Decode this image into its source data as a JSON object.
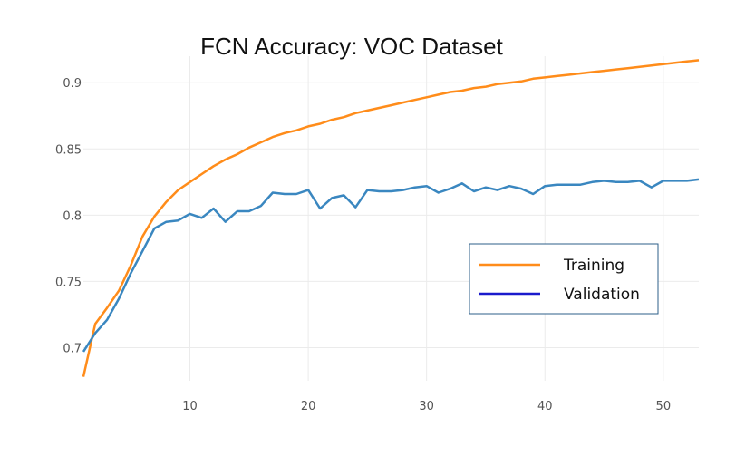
{
  "chart_data": {
    "type": "line",
    "title": "FCN Accuracy: VOC Dataset",
    "xlabel": "",
    "ylabel": "",
    "xlim": [
      1,
      53
    ],
    "ylim": [
      0.675,
      0.92
    ],
    "grid": true,
    "legend_position": "right",
    "x_ticks": [
      10,
      20,
      30,
      40,
      50
    ],
    "y_ticks": [
      0.7,
      0.75,
      0.8,
      0.85,
      0.9
    ],
    "x_tick_labels": [
      "10",
      "20",
      "30",
      "40",
      "50"
    ],
    "y_tick_labels": [
      "0.7",
      "0.75",
      "0.8",
      "0.85",
      "0.9"
    ],
    "series": [
      {
        "name": "Training",
        "color": "#ff8c1a",
        "legend_color": "#ff8c1a",
        "x": [
          1,
          2,
          3,
          4,
          5,
          6,
          7,
          8,
          9,
          10,
          11,
          12,
          13,
          14,
          15,
          16,
          17,
          18,
          19,
          20,
          21,
          22,
          23,
          24,
          25,
          26,
          27,
          28,
          29,
          30,
          31,
          32,
          33,
          34,
          35,
          36,
          37,
          38,
          39,
          40,
          41,
          42,
          43,
          44,
          45,
          46,
          47,
          48,
          49,
          50,
          51,
          52,
          53
        ],
        "y": [
          0.678,
          0.718,
          0.73,
          0.743,
          0.762,
          0.784,
          0.799,
          0.81,
          0.819,
          0.825,
          0.831,
          0.837,
          0.842,
          0.846,
          0.851,
          0.855,
          0.859,
          0.862,
          0.864,
          0.867,
          0.869,
          0.872,
          0.874,
          0.877,
          0.879,
          0.881,
          0.883,
          0.885,
          0.887,
          0.889,
          0.891,
          0.893,
          0.894,
          0.896,
          0.897,
          0.899,
          0.9,
          0.901,
          0.903,
          0.904,
          0.905,
          0.906,
          0.907,
          0.908,
          0.909,
          0.91,
          0.911,
          0.912,
          0.913,
          0.914,
          0.915,
          0.916,
          0.917
        ]
      },
      {
        "name": "Validation",
        "color": "#3a87c0",
        "legend_color": "#1a1acc",
        "x": [
          1,
          2,
          3,
          4,
          5,
          6,
          7,
          8,
          9,
          10,
          11,
          12,
          13,
          14,
          15,
          16,
          17,
          18,
          19,
          20,
          21,
          22,
          23,
          24,
          25,
          26,
          27,
          28,
          29,
          30,
          31,
          32,
          33,
          34,
          35,
          36,
          37,
          38,
          39,
          40,
          41,
          42,
          43,
          44,
          45,
          46,
          47,
          48,
          49,
          50,
          51,
          52,
          53
        ],
        "y": [
          0.697,
          0.711,
          0.721,
          0.737,
          0.756,
          0.773,
          0.79,
          0.795,
          0.796,
          0.801,
          0.798,
          0.805,
          0.795,
          0.803,
          0.803,
          0.807,
          0.817,
          0.816,
          0.816,
          0.819,
          0.805,
          0.813,
          0.815,
          0.806,
          0.819,
          0.818,
          0.818,
          0.819,
          0.821,
          0.822,
          0.817,
          0.82,
          0.824,
          0.818,
          0.821,
          0.819,
          0.822,
          0.82,
          0.816,
          0.822,
          0.823,
          0.823,
          0.823,
          0.825,
          0.826,
          0.825,
          0.825,
          0.826,
          0.821,
          0.826,
          0.826,
          0.826,
          0.827
        ]
      }
    ]
  },
  "colors": {
    "grid": "#ebebeb",
    "tick_text": "#555555",
    "legend_border": "#2e5f8a"
  }
}
